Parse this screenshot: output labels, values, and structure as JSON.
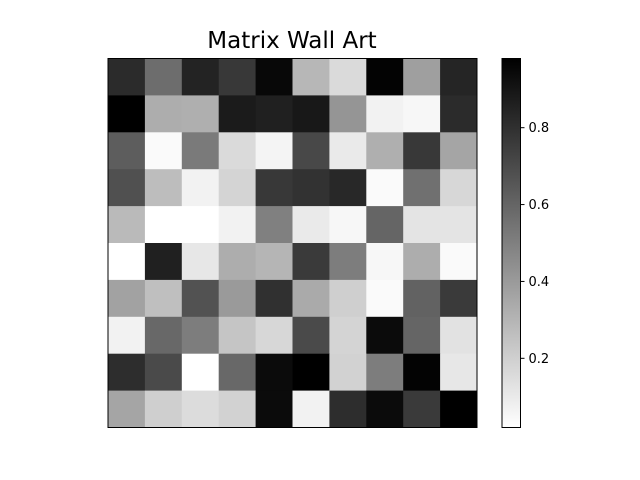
{
  "chart_data": {
    "type": "heatmap",
    "title": "Matrix Wall Art",
    "colormap": "gray_r",
    "vmin": 0.02,
    "vmax": 0.98,
    "colorbar_ticks": [
      0.2,
      0.4,
      0.6,
      0.8
    ],
    "colorbar_tick_labels": [
      "0.2",
      "0.4",
      "0.6",
      "0.8"
    ],
    "values": [
      [
        0.82,
        0.57,
        0.85,
        0.77,
        0.95,
        0.29,
        0.16,
        0.97,
        0.38,
        0.84
      ],
      [
        0.99,
        0.33,
        0.32,
        0.88,
        0.86,
        0.89,
        0.42,
        0.07,
        0.05,
        0.82
      ],
      [
        0.63,
        0.04,
        0.52,
        0.16,
        0.06,
        0.71,
        0.1,
        0.32,
        0.77,
        0.36
      ],
      [
        0.68,
        0.27,
        0.07,
        0.18,
        0.77,
        0.79,
        0.83,
        0.04,
        0.56,
        0.17
      ],
      [
        0.28,
        0.01,
        0.01,
        0.07,
        0.5,
        0.1,
        0.05,
        0.6,
        0.12,
        0.12
      ],
      [
        0.01,
        0.86,
        0.11,
        0.33,
        0.3,
        0.76,
        0.51,
        0.05,
        0.33,
        0.04
      ],
      [
        0.37,
        0.26,
        0.67,
        0.4,
        0.8,
        0.34,
        0.2,
        0.04,
        0.61,
        0.76
      ],
      [
        0.07,
        0.59,
        0.51,
        0.24,
        0.17,
        0.7,
        0.18,
        0.94,
        0.6,
        0.13
      ],
      [
        0.81,
        0.7,
        0.0,
        0.59,
        0.94,
        0.98,
        0.19,
        0.51,
        0.97,
        0.11
      ],
      [
        0.36,
        0.2,
        0.15,
        0.19,
        0.94,
        0.07,
        0.81,
        0.94,
        0.76,
        0.99
      ]
    ]
  }
}
